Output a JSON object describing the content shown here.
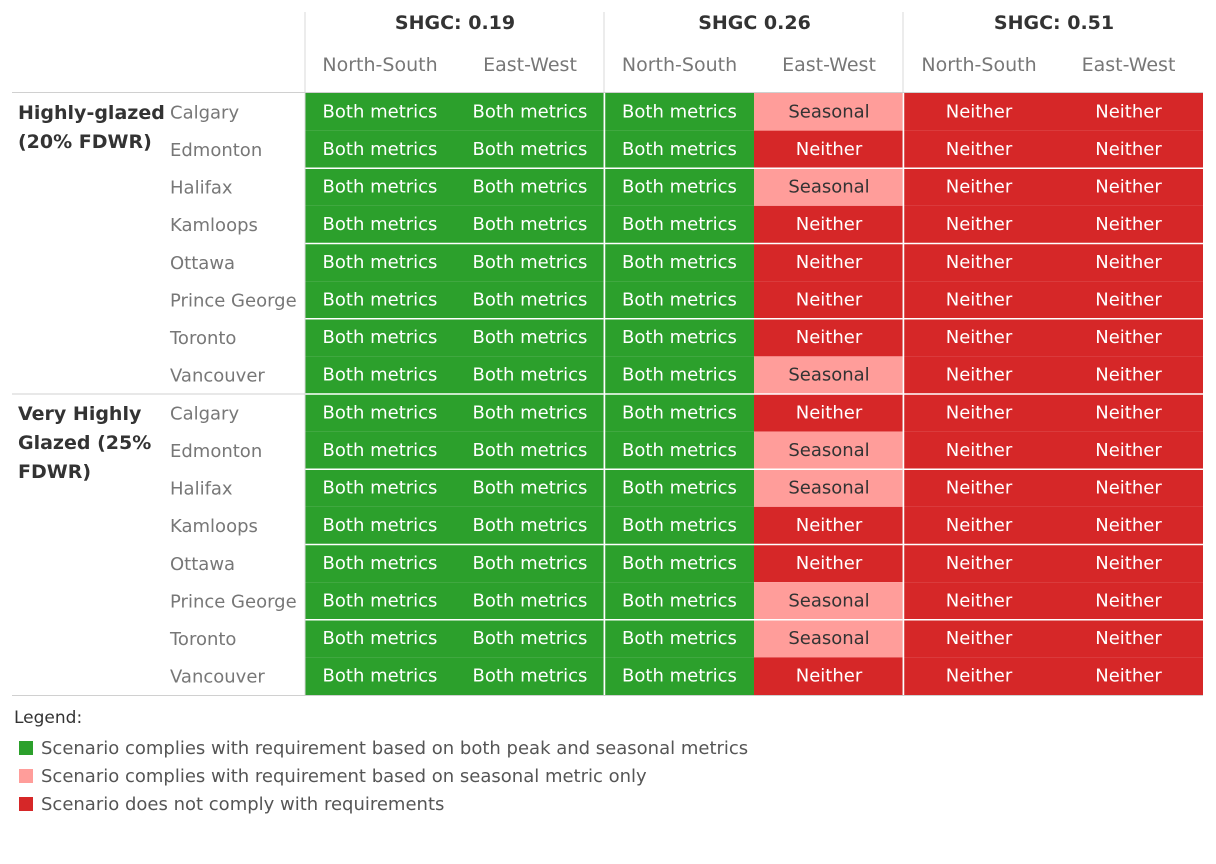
{
  "chart_data": {
    "type": "table",
    "shgc_groups": [
      {
        "label": "SHGC: 0.19",
        "orientations": [
          "North-South",
          "East-West"
        ]
      },
      {
        "label": "SHGC 0.26",
        "orientations": [
          "North-South",
          "East-West"
        ]
      },
      {
        "label": "SHGC: 0.51",
        "orientations": [
          "North-South",
          "East-West"
        ]
      }
    ],
    "row_groups": [
      {
        "label_lines": [
          "Highly-glazed",
          "(20% FDWR)"
        ],
        "cities": [
          "Calgary",
          "Edmonton",
          "Halifax",
          "Kamloops",
          "Ottawa",
          "Prince George",
          "Toronto",
          "Vancouver"
        ],
        "values": [
          [
            "Both metrics",
            "Both metrics",
            "Both metrics",
            "Seasonal",
            "Neither",
            "Neither"
          ],
          [
            "Both metrics",
            "Both metrics",
            "Both metrics",
            "Neither",
            "Neither",
            "Neither"
          ],
          [
            "Both metrics",
            "Both metrics",
            "Both metrics",
            "Seasonal",
            "Neither",
            "Neither"
          ],
          [
            "Both metrics",
            "Both metrics",
            "Both metrics",
            "Neither",
            "Neither",
            "Neither"
          ],
          [
            "Both metrics",
            "Both metrics",
            "Both metrics",
            "Neither",
            "Neither",
            "Neither"
          ],
          [
            "Both metrics",
            "Both metrics",
            "Both metrics",
            "Neither",
            "Neither",
            "Neither"
          ],
          [
            "Both metrics",
            "Both metrics",
            "Both metrics",
            "Neither",
            "Neither",
            "Neither"
          ],
          [
            "Both metrics",
            "Both metrics",
            "Both metrics",
            "Seasonal",
            "Neither",
            "Neither"
          ]
        ]
      },
      {
        "label_lines": [
          "Very Highly",
          "Glazed (25%",
          "FDWR)"
        ],
        "cities": [
          "Calgary",
          "Edmonton",
          "Halifax",
          "Kamloops",
          "Ottawa",
          "Prince George",
          "Toronto",
          "Vancouver"
        ],
        "values": [
          [
            "Both metrics",
            "Both metrics",
            "Both metrics",
            "Neither",
            "Neither",
            "Neither"
          ],
          [
            "Both metrics",
            "Both metrics",
            "Both metrics",
            "Seasonal",
            "Neither",
            "Neither"
          ],
          [
            "Both metrics",
            "Both metrics",
            "Both metrics",
            "Seasonal",
            "Neither",
            "Neither"
          ],
          [
            "Both metrics",
            "Both metrics",
            "Both metrics",
            "Neither",
            "Neither",
            "Neither"
          ],
          [
            "Both metrics",
            "Both metrics",
            "Both metrics",
            "Neither",
            "Neither",
            "Neither"
          ],
          [
            "Both metrics",
            "Both metrics",
            "Both metrics",
            "Seasonal",
            "Neither",
            "Neither"
          ],
          [
            "Both metrics",
            "Both metrics",
            "Both metrics",
            "Seasonal",
            "Neither",
            "Neither"
          ],
          [
            "Both metrics",
            "Both metrics",
            "Both metrics",
            "Neither",
            "Neither",
            "Neither"
          ]
        ]
      }
    ],
    "category_colors": {
      "Both metrics": {
        "fill": "#2ca02c",
        "text": "#ffffff"
      },
      "Seasonal": {
        "fill": "#ff9d9a",
        "text": "#333333"
      },
      "Neither": {
        "fill": "#d62728",
        "text": "#ffffff"
      }
    }
  },
  "legend": {
    "title": "Legend:",
    "items": [
      {
        "label": "Scenario complies with requirement based on both peak and seasonal metrics",
        "color": "#2ca02c"
      },
      {
        "label": "Scenario complies with requirement based on seasonal metric only",
        "color": "#ff9d9a"
      },
      {
        "label": "Scenario does not comply with requirements",
        "color": "#d62728"
      }
    ]
  }
}
